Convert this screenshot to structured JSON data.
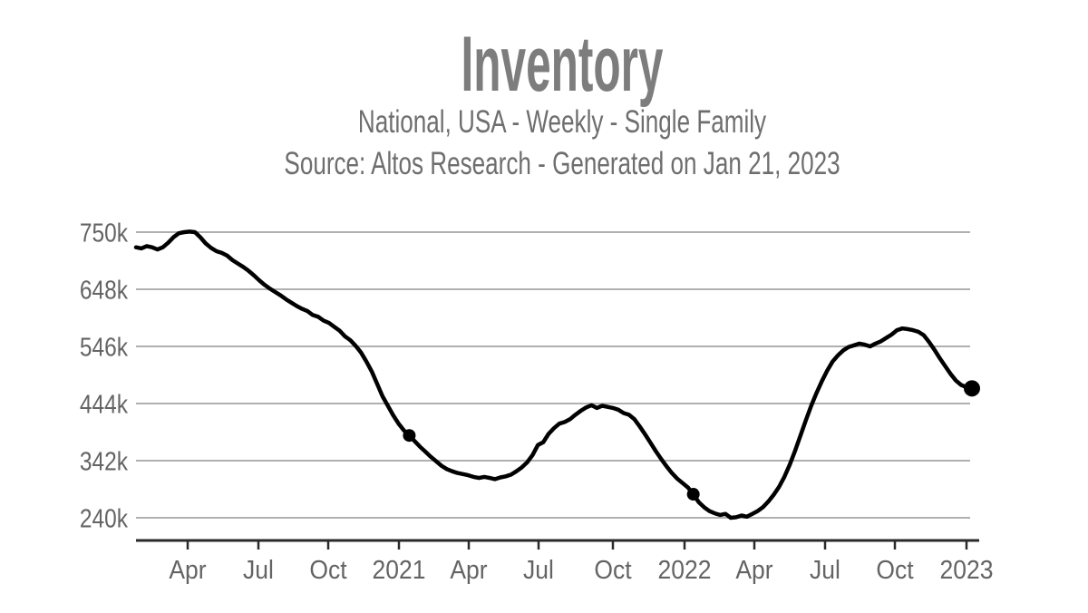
{
  "header": {
    "title": "Inventory",
    "subtitle": "National, USA - Weekly - Single Family",
    "source": "Source: Altos Research - Generated on Jan 21, 2023"
  },
  "colors": {
    "line": "#000000",
    "marker": "#000000",
    "grid": "#b0b0b0",
    "axis": "#2a2a2a",
    "axis_label": "#646464",
    "title": "#7d7d7d",
    "subtitle": "#6e6e6e"
  },
  "chart_data": {
    "type": "line",
    "title": "Inventory",
    "subtitle": "National, USA - Weekly - Single Family",
    "source": "Source: Altos Research - Generated on Jan 21, 2023",
    "frequency": "weekly",
    "series_name": "Single Family Inventory, National USA",
    "ylabel": "",
    "xlabel": "",
    "grid": true,
    "legend": false,
    "y_ticks": [
      {
        "label": "750k",
        "value_thousands": 750
      },
      {
        "label": "648k",
        "value_thousands": 648
      },
      {
        "label": "546k",
        "value_thousands": 546
      },
      {
        "label": "444k",
        "value_thousands": 444
      },
      {
        "label": "342k",
        "value_thousands": 342
      },
      {
        "label": "240k",
        "value_thousands": 240
      }
    ],
    "x_ticks": [
      "Apr",
      "Jul",
      "Oct",
      "2021",
      "Apr",
      "Jul",
      "Oct",
      "2022",
      "Apr",
      "Jul",
      "Oct",
      "2023"
    ],
    "ylim_thousands": [
      240,
      750
    ],
    "values_thousands": [
      723,
      721,
      725,
      723,
      719,
      723,
      731,
      741,
      748,
      750,
      751,
      750,
      741,
      730,
      722,
      716,
      713,
      708,
      700,
      694,
      688,
      681,
      673,
      664,
      656,
      649,
      643,
      637,
      630,
      624,
      618,
      613,
      609,
      602,
      599,
      592,
      588,
      581,
      574,
      564,
      557,
      547,
      535,
      519,
      501,
      479,
      457,
      440,
      423,
      408,
      396,
      387,
      377,
      367,
      358,
      349,
      341,
      333,
      327,
      323,
      320,
      318,
      316,
      313,
      311,
      313,
      311,
      309,
      312,
      314,
      317,
      323,
      330,
      339,
      352,
      370,
      375,
      390,
      400,
      408,
      411,
      416,
      424,
      431,
      437,
      441,
      436,
      440,
      438,
      436,
      433,
      427,
      424,
      416,
      403,
      389,
      374,
      359,
      345,
      332,
      320,
      310,
      302,
      294,
      282,
      268,
      259,
      252,
      248,
      245,
      247,
      240,
      241,
      244,
      242,
      247,
      252,
      259,
      269,
      281,
      295,
      313,
      335,
      360,
      387,
      414,
      440,
      463,
      484,
      503,
      519,
      530,
      539,
      545,
      548,
      551,
      549,
      546,
      551,
      555,
      561,
      567,
      575,
      578,
      577,
      575,
      572,
      566,
      554,
      540,
      525,
      511,
      497,
      485,
      477,
      473,
      471
    ],
    "markers": [
      {
        "index": 51,
        "value_thousands": 387,
        "size": "small"
      },
      {
        "index": 104,
        "value_thousands": 282,
        "size": "small"
      },
      {
        "index": 156,
        "value_thousands": 471,
        "size": "large"
      }
    ]
  }
}
